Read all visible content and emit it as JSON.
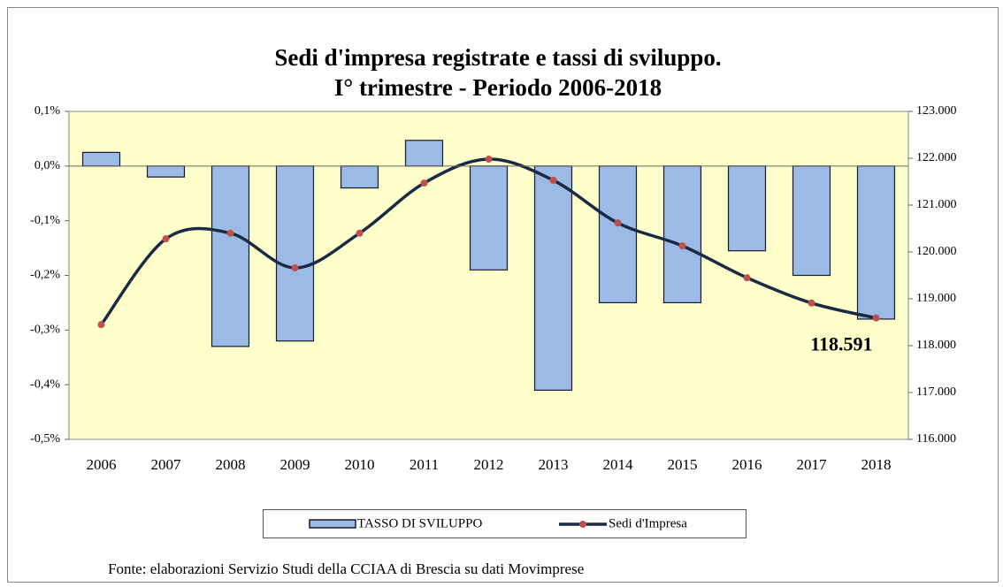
{
  "chart_data": {
    "type": "bar-line",
    "title": [
      "Sedi d'impresa registrate e tassi di sviluppo.",
      "I° trimestre - Periodo 2006-2018"
    ],
    "categories": [
      "2006",
      "2007",
      "2008",
      "2009",
      "2010",
      "2011",
      "2012",
      "2013",
      "2014",
      "2015",
      "2016",
      "2017",
      "2018"
    ],
    "series": [
      {
        "name": "TASSO DI SVILUPPO",
        "type": "bar",
        "color": "#9bbbe6",
        "values": [
          0.025,
          -0.02,
          -0.33,
          -0.32,
          -0.04,
          0.047,
          -0.19,
          -0.41,
          -0.25,
          -0.25,
          -0.155,
          -0.2,
          -0.28
        ]
      },
      {
        "name": "Sedi d'Impresa",
        "type": "line",
        "axis": "y2",
        "color": "#1a2a44",
        "marker_color": "#c0504d",
        "values": [
          118450,
          120280,
          120400,
          119660,
          120400,
          121470,
          121980,
          121530,
          120620,
          120130,
          119450,
          118910,
          118591
        ],
        "value_labels": [
          null,
          null,
          null,
          null,
          null,
          null,
          null,
          null,
          null,
          null,
          null,
          null,
          "118.591"
        ]
      }
    ],
    "ylim": [
      -0.5,
      0.1
    ],
    "yticks": [
      {
        "value": 0.1,
        "label": "0,1%"
      },
      {
        "value": 0,
        "label": "0,0%"
      },
      {
        "value": -0.1,
        "label": "-0,1%"
      },
      {
        "value": -0.2,
        "label": "-0,2%"
      },
      {
        "value": -0.3,
        "label": "-0,3%"
      },
      {
        "value": -0.4,
        "label": "-0,4%"
      },
      {
        "value": -0.5,
        "label": "-0,5%"
      }
    ],
    "y2lim": [
      116000,
      123000
    ],
    "y2ticks": [
      {
        "value": 123000,
        "label": "123.000"
      },
      {
        "value": 122000,
        "label": "122.000"
      },
      {
        "value": 121000,
        "label": "121.000"
      },
      {
        "value": 120000,
        "label": "120.000"
      },
      {
        "value": 119000,
        "label": "119.000"
      },
      {
        "value": 118000,
        "label": "118.000"
      },
      {
        "value": 117000,
        "label": "117.000"
      },
      {
        "value": 116000,
        "label": "116.000"
      }
    ],
    "plot_background": "#ffffcc",
    "legend": "bottom",
    "source": "Fonte: elaborazioni Servizio Studi della CCIAA di Brescia su dati Movimprese"
  }
}
